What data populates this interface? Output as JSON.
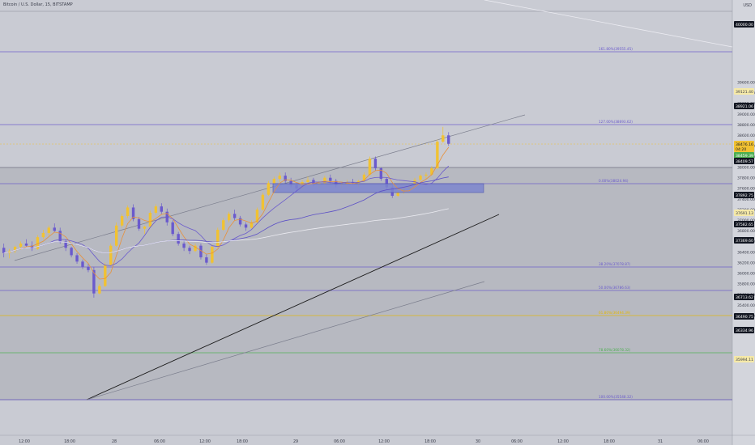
{
  "header": {
    "symbol_title": "Bitcoin / U.S. Dollar, 15, BITSTAMP",
    "currency": "USD"
  },
  "colors": {
    "background": "#c9cbd3",
    "lower_zone": "#b7b9c1",
    "price_axis_bg": "#d3d5dc",
    "text": "#3a3d4a",
    "gold": "#f1c232",
    "purple": "#6a5acd",
    "orange": "#e8913a",
    "green": "#4caf50",
    "black": "#1c1c1c",
    "white": "#ececf2",
    "blue_box": "#7d86cf"
  },
  "price_axis": {
    "ticks": [
      "39600.00",
      "39400.00",
      "39200.00",
      "39000.00",
      "38800.00",
      "38600.00",
      "38400.00",
      "38200.00",
      "38000.00",
      "37800.00",
      "37600.00",
      "37400.00",
      "37200.00",
      "37000.00",
      "36800.00",
      "36600.00",
      "36400.00",
      "36200.00",
      "36000.00",
      "35800.00",
      "35600.00",
      "35400.00",
      "35200.00"
    ],
    "badges": [
      {
        "text": "40000.00",
        "color": "#131722",
        "fg": "#ffffff"
      },
      {
        "text": "39121.40",
        "color": "#f5e9a8",
        "fg": "#3a3d4a"
      },
      {
        "text": "38921.06",
        "color": "#131722",
        "fg": "#ffffff"
      },
      {
        "text": "38476.16",
        "color": "#f1c232",
        "fg": "#131722"
      },
      {
        "text": "04:20",
        "color": "#f1c232",
        "fg": "#131722"
      },
      {
        "text": "38459.39",
        "color": "#4caf50",
        "fg": "#ffffff"
      },
      {
        "text": "38409.57",
        "color": "#131722",
        "fg": "#ffffff"
      },
      {
        "text": "37892.75",
        "color": "#131722",
        "fg": "#ffffff"
      },
      {
        "text": "37691.13",
        "color": "#f5e9a8",
        "fg": "#3a3d4a"
      },
      {
        "text": "37582.65",
        "color": "#131722",
        "fg": "#ffffff"
      },
      {
        "text": "37369.60",
        "color": "#131722",
        "fg": "#ffffff"
      },
      {
        "text": "36713.62",
        "color": "#131722",
        "fg": "#ffffff"
      },
      {
        "text": "36490.75",
        "color": "#131722",
        "fg": "#ffffff"
      },
      {
        "text": "36334.96",
        "color": "#131722",
        "fg": "#ffffff"
      },
      {
        "text": "35994.11",
        "color": "#f5e9a8",
        "fg": "#3a3d4a"
      }
    ]
  },
  "time_axis": {
    "labels": [
      "12:00",
      "18:00",
      "28",
      "06:00",
      "12:00",
      "18:00",
      "29",
      "06:00",
      "12:00",
      "18:00",
      "30",
      "06:00",
      "12:00",
      "18:00",
      "31",
      "06:00"
    ]
  },
  "fib_levels": [
    {
      "label": "161.80%(39555.45)",
      "color": "#6a5acd"
    },
    {
      "label": "127.00%(38693.62)",
      "color": "#6a5acd"
    },
    {
      "label": "0.00%(38024.94)",
      "color": "#6a5acd"
    },
    {
      "label": "38.20%(37078.87)",
      "color": "#6a5acd"
    },
    {
      "label": "50.00%(36786.63)",
      "color": "#6a5acd"
    },
    {
      "label": "61.80%(36494.39)",
      "color": "#e6b800"
    },
    {
      "label": "78.60%(36078.32)",
      "color": "#4caf50"
    },
    {
      "label": "100.00%(35548.32)",
      "color": "#6a5acd"
    }
  ],
  "chart_data": {
    "type": "candlestick",
    "instrument": "Bitcoin / U.S. Dollar",
    "exchange": "BITSTAMP",
    "interval": "15",
    "ylim": [
      35100,
      40050
    ],
    "ohlc": [
      [
        36480,
        36560,
        36300,
        36380
      ],
      [
        36380,
        36460,
        36280,
        36420
      ],
      [
        36420,
        36520,
        36380,
        36500
      ],
      [
        36500,
        36600,
        36440,
        36560
      ],
      [
        36560,
        36640,
        36500,
        36520
      ],
      [
        36520,
        36600,
        36420,
        36460
      ],
      [
        36460,
        36720,
        36440,
        36680
      ],
      [
        36680,
        36820,
        36640,
        36760
      ],
      [
        36760,
        36900,
        36700,
        36860
      ],
      [
        36860,
        36940,
        36780,
        36800
      ],
      [
        36800,
        36860,
        36560,
        36600
      ],
      [
        36600,
        36640,
        36420,
        36480
      ],
      [
        36480,
        36500,
        36300,
        36340
      ],
      [
        36340,
        36380,
        36180,
        36220
      ],
      [
        36220,
        36260,
        36080,
        36120
      ],
      [
        36120,
        36180,
        36020,
        36060
      ],
      [
        36060,
        36120,
        35540,
        35620
      ],
      [
        35620,
        35800,
        35600,
        35760
      ],
      [
        35760,
        36200,
        35740,
        36160
      ],
      [
        36160,
        36560,
        36140,
        36520
      ],
      [
        36520,
        36960,
        36500,
        36900
      ],
      [
        36900,
        37120,
        36860,
        37080
      ],
      [
        37080,
        37280,
        37040,
        37240
      ],
      [
        37240,
        37300,
        36980,
        37020
      ],
      [
        37020,
        37060,
        36800,
        36840
      ],
      [
        36840,
        36900,
        36740,
        36880
      ],
      [
        36880,
        37180,
        36860,
        37140
      ],
      [
        37140,
        37300,
        37100,
        37260
      ],
      [
        37260,
        37320,
        37120,
        37160
      ],
      [
        37160,
        37220,
        36900,
        36960
      ],
      [
        36960,
        37000,
        36700,
        36740
      ],
      [
        36740,
        36780,
        36520,
        36560
      ],
      [
        36560,
        36620,
        36420,
        36480
      ],
      [
        36480,
        36520,
        36360,
        36420
      ],
      [
        36420,
        36560,
        36400,
        36520
      ],
      [
        36520,
        36560,
        36260,
        36300
      ],
      [
        36300,
        36360,
        36160,
        36200
      ],
      [
        36200,
        36540,
        36180,
        36500
      ],
      [
        36500,
        36860,
        36480,
        36820
      ],
      [
        36820,
        37040,
        36800,
        37000
      ],
      [
        37000,
        37160,
        36960,
        37120
      ],
      [
        37120,
        37200,
        37000,
        37040
      ],
      [
        37040,
        37080,
        36880,
        36920
      ],
      [
        36920,
        36960,
        36800,
        36860
      ],
      [
        36860,
        37000,
        36840,
        36960
      ],
      [
        36960,
        37240,
        36940,
        37200
      ],
      [
        37200,
        37520,
        37180,
        37480
      ],
      [
        37480,
        37740,
        37460,
        37700
      ],
      [
        37700,
        37820,
        37660,
        37780
      ],
      [
        37780,
        37900,
        37720,
        37840
      ],
      [
        37840,
        37900,
        37700,
        37740
      ],
      [
        37740,
        37800,
        37620,
        37660
      ],
      [
        37660,
        37700,
        37540,
        37600
      ],
      [
        37600,
        37760,
        37580,
        37720
      ],
      [
        37720,
        37820,
        37680,
        37760
      ],
      [
        37760,
        37800,
        37640,
        37680
      ],
      [
        37680,
        37740,
        37600,
        37700
      ],
      [
        37700,
        37840,
        37680,
        37800
      ],
      [
        37800,
        37860,
        37700,
        37740
      ],
      [
        37740,
        37780,
        37620,
        37660
      ],
      [
        37660,
        37720,
        37600,
        37680
      ],
      [
        37680,
        37760,
        37640,
        37720
      ],
      [
        37720,
        37780,
        37660,
        37700
      ],
      [
        37700,
        37760,
        37620,
        37740
      ],
      [
        37740,
        37900,
        37720,
        37860
      ],
      [
        37860,
        38200,
        37840,
        38160
      ],
      [
        38160,
        38200,
        37940,
        37980
      ],
      [
        37980,
        38000,
        37740,
        37780
      ],
      [
        37780,
        37800,
        37580,
        37620
      ],
      [
        37620,
        37660,
        37420,
        37460
      ],
      [
        37460,
        37560,
        37440,
        37520
      ],
      [
        37520,
        37640,
        37500,
        37600
      ],
      [
        37600,
        37680,
        37560,
        37640
      ],
      [
        37640,
        37800,
        37620,
        37760
      ],
      [
        37760,
        37860,
        37740,
        37840
      ],
      [
        37840,
        37900,
        37780,
        37860
      ],
      [
        37860,
        38020,
        37840,
        37980
      ],
      [
        37980,
        38520,
        37960,
        38480
      ],
      [
        38480,
        38760,
        38460,
        38600
      ],
      [
        38600,
        38660,
        38400,
        38440
      ]
    ]
  }
}
